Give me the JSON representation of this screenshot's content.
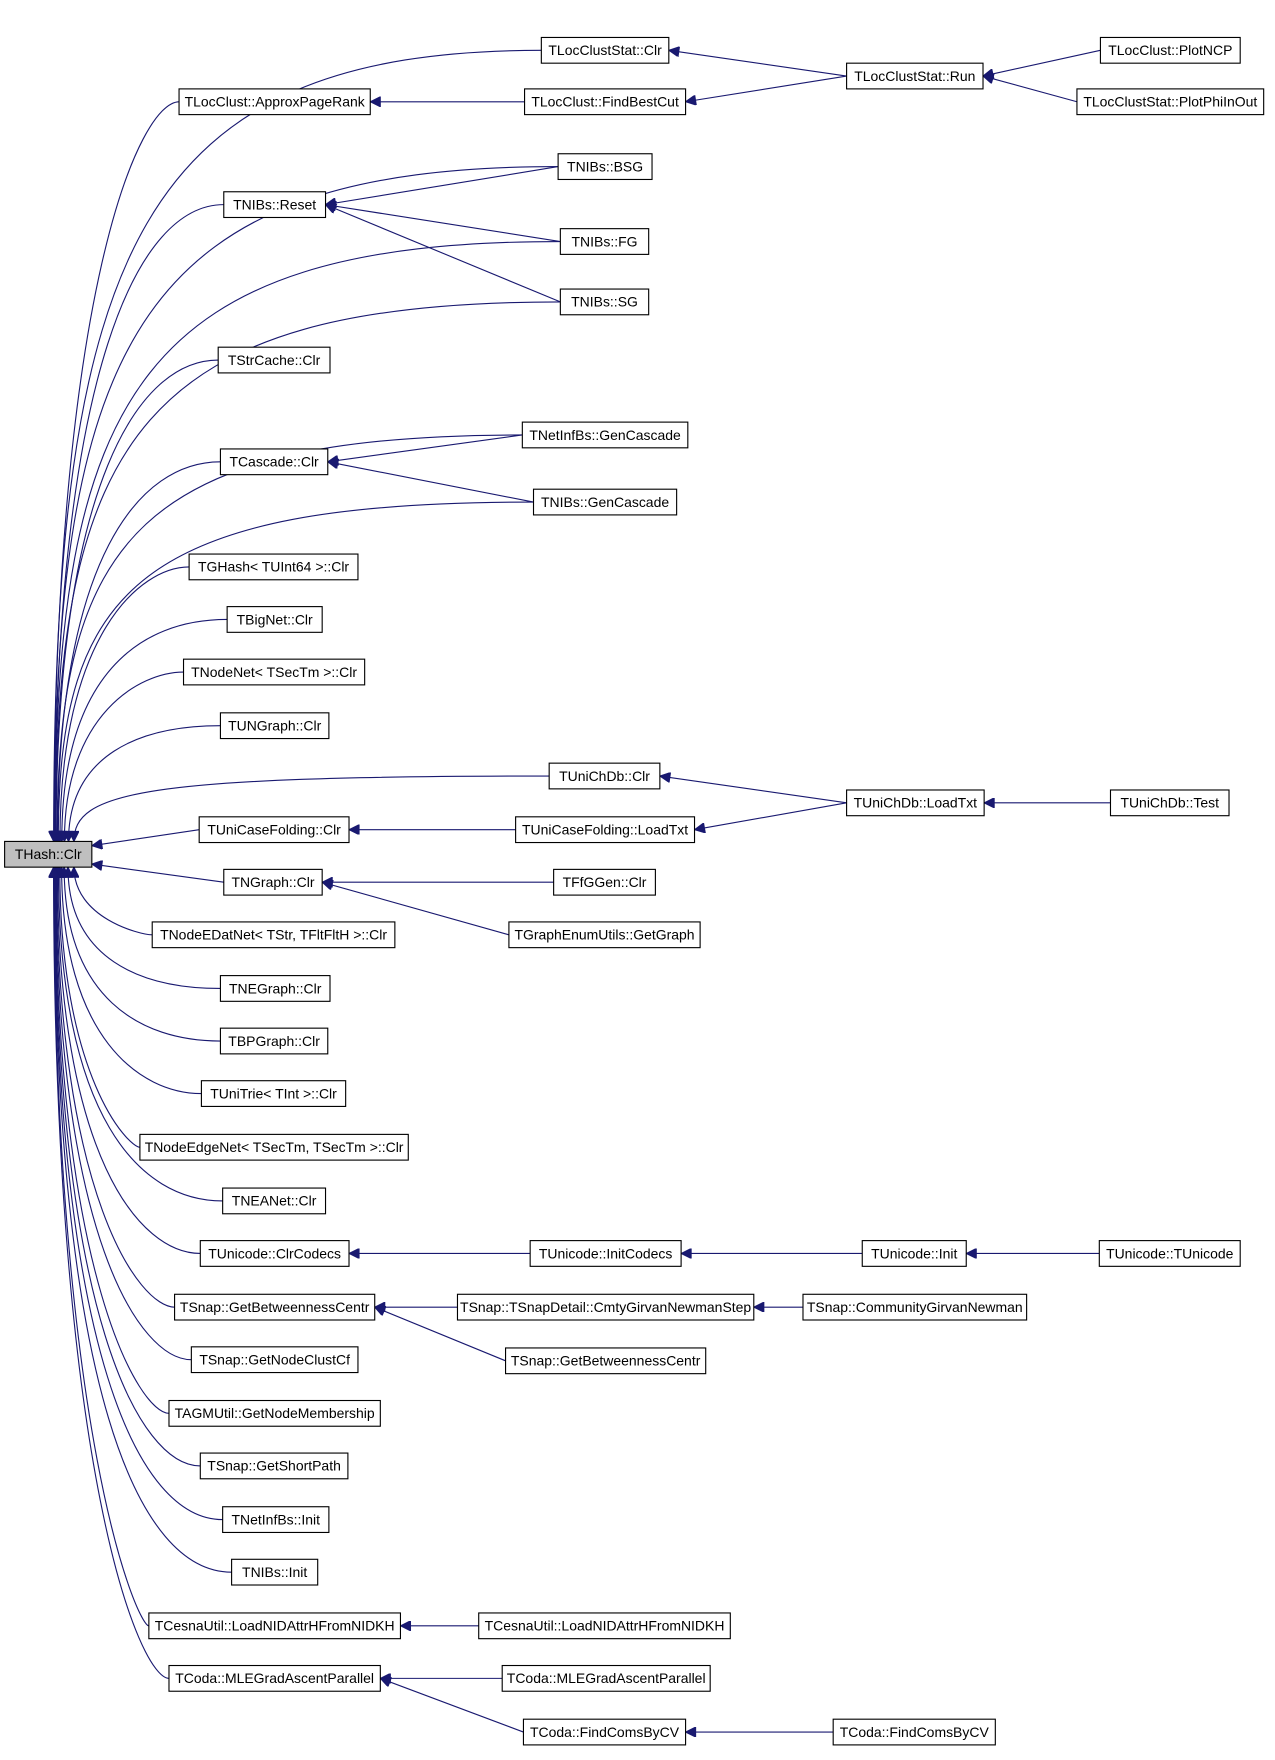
{
  "nodes": [
    {
      "label": "THash::Clr"
    },
    {
      "label": "TLocClustStat::Clr"
    },
    {
      "label": "TLocClust::ApproxPageRank"
    },
    {
      "label": "TLocClust::FindBestCut"
    },
    {
      "label": "TLocClustStat::Run"
    },
    {
      "label": "TLocClust::PlotNCP"
    },
    {
      "label": "TLocClustStat::PlotPhiInOut"
    },
    {
      "label": "TNIBs::BSG"
    },
    {
      "label": "TNIBs::Reset"
    },
    {
      "label": "TNIBs::FG"
    },
    {
      "label": "TNIBs::SG"
    },
    {
      "label": "TStrCache::Clr"
    },
    {
      "label": "TNetInfBs::GenCascade"
    },
    {
      "label": "TCascade::Clr"
    },
    {
      "label": "TNIBs::GenCascade"
    },
    {
      "label": "TGHash< TUInt64 >::Clr"
    },
    {
      "label": "TBigNet::Clr"
    },
    {
      "label": "TNodeNet< TSecTm >::Clr"
    },
    {
      "label": "TUNGraph::Clr"
    },
    {
      "label": "TUniChDb::Clr"
    },
    {
      "label": "TUniChDb::LoadTxt"
    },
    {
      "label": "TUniChDb::Test"
    },
    {
      "label": "TUniCaseFolding::Clr"
    },
    {
      "label": "TUniCaseFolding::LoadTxt"
    },
    {
      "label": "TNGraph::Clr"
    },
    {
      "label": "TFfGGen::Clr"
    },
    {
      "label": "TGraphEnumUtils::GetGraph"
    },
    {
      "label": "TNodeEDatNet< TStr, TFltFltH >::Clr"
    },
    {
      "label": "TNEGraph::Clr"
    },
    {
      "label": "TBPGraph::Clr"
    },
    {
      "label": "TUniTrie< TInt >::Clr"
    },
    {
      "label": "TNodeEdgeNet< TSecTm, TSecTm >::Clr"
    },
    {
      "label": "TNEANet::Clr"
    },
    {
      "label": "TUnicode::ClrCodecs"
    },
    {
      "label": "TUnicode::InitCodecs"
    },
    {
      "label": "TUnicode::Init"
    },
    {
      "label": "TUnicode::TUnicode"
    },
    {
      "label": "TSnap::GetBetweennessCentr"
    },
    {
      "label": "TSnap::TSnapDetail::CmtyGirvanNewmanStep"
    },
    {
      "label": "TSnap::CommunityGirvanNewman"
    },
    {
      "label": "TSnap::GetNodeClustCf"
    },
    {
      "label": "TSnap::GetBetweennessCentr"
    },
    {
      "label": "TAGMUtil::GetNodeMembership"
    },
    {
      "label": "TSnap::GetShortPath"
    },
    {
      "label": "TNetInfBs::Init"
    },
    {
      "label": "TNIBs::Init"
    },
    {
      "label": "TCesnaUtil::LoadNIDAttrHFromNIDKH"
    },
    {
      "label": "TCesnaUtil::LoadNIDAttrHFromNIDKH"
    },
    {
      "label": "TCoda::MLEGradAscentParallel"
    },
    {
      "label": "TCoda::MLEGradAscentParallel"
    },
    {
      "label": "TCoda::FindComsByCV"
    },
    {
      "label": "TCoda::FindComsByCV"
    }
  ]
}
